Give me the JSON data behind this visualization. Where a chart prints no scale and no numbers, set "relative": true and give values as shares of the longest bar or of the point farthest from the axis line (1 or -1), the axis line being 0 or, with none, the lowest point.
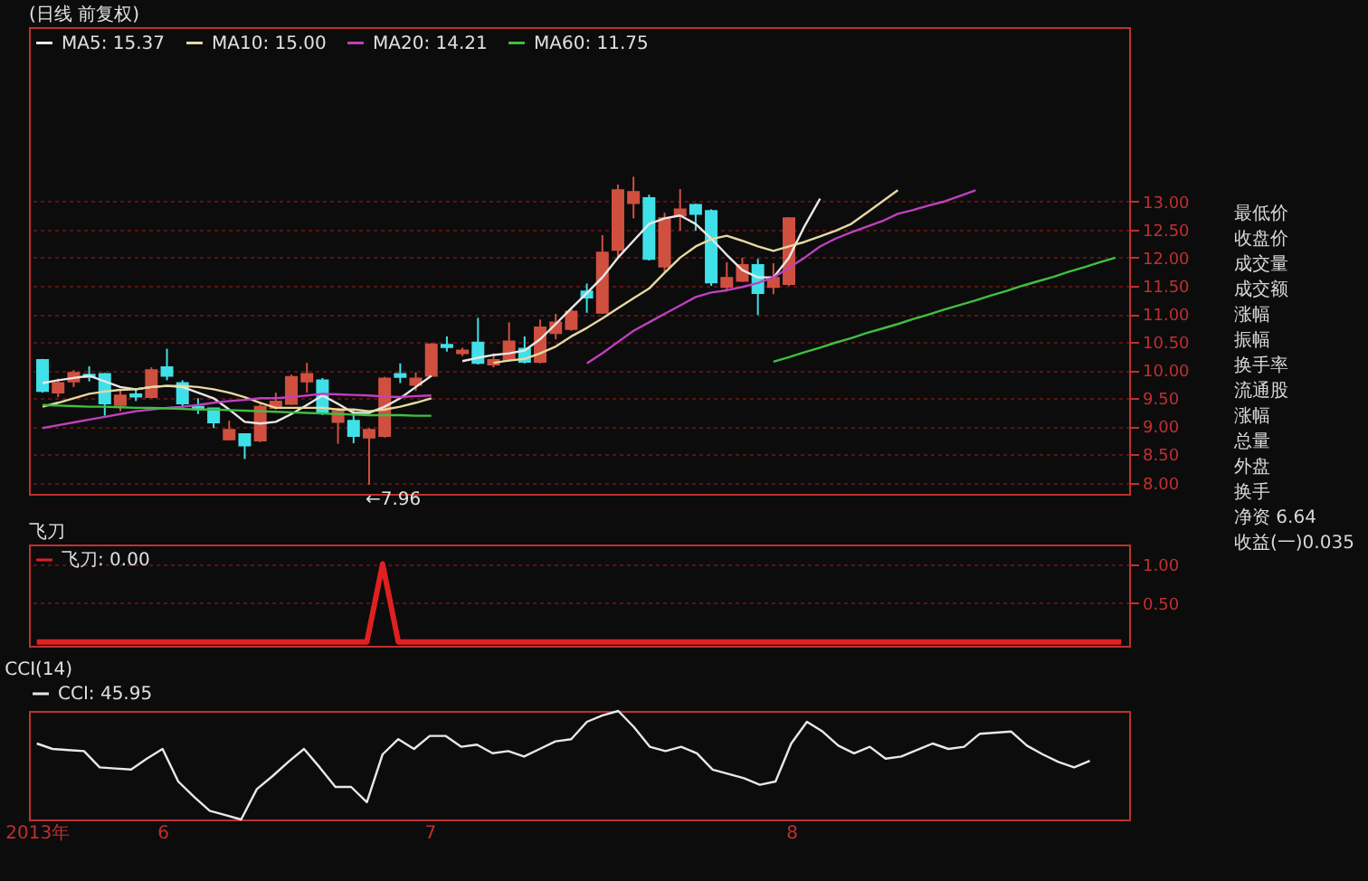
{
  "chart_data": [
    {
      "type": "candlestick",
      "title": "(日线 前复权)",
      "categories": [
        null,
        null,
        null,
        null,
        null,
        null,
        null,
        null,
        null,
        null,
        null,
        null,
        null,
        null,
        null,
        null,
        null,
        null,
        null,
        null,
        null,
        null,
        null,
        null,
        null,
        null,
        null,
        null,
        null,
        null,
        null,
        null,
        null,
        null,
        null,
        null,
        null,
        null,
        null,
        null,
        null,
        null,
        null,
        null,
        null,
        null,
        null,
        null,
        null,
        null,
        null,
        null,
        null,
        null,
        null,
        null,
        null,
        null,
        null,
        null,
        null,
        null,
        null,
        null,
        null,
        null,
        null,
        null,
        null,
        null
      ],
      "ohlc": [
        [
          10.18,
          10.2,
          9.6,
          9.63
        ],
        [
          9.6,
          9.85,
          9.52,
          9.77
        ],
        [
          9.8,
          10.0,
          9.7,
          9.95
        ],
        [
          9.92,
          10.07,
          9.8,
          9.88
        ],
        [
          9.93,
          9.95,
          9.19,
          9.41
        ],
        [
          9.38,
          9.66,
          9.27,
          9.55
        ],
        [
          9.57,
          9.66,
          9.45,
          9.53
        ],
        [
          9.52,
          10.05,
          9.5,
          10.0
        ],
        [
          10.05,
          10.38,
          9.82,
          9.9
        ],
        [
          9.77,
          9.82,
          9.33,
          9.41
        ],
        [
          9.35,
          9.5,
          9.22,
          9.31
        ],
        [
          9.32,
          9.33,
          8.97,
          9.07
        ],
        [
          8.77,
          9.1,
          8.75,
          8.94
        ],
        [
          8.86,
          8.87,
          8.42,
          8.66
        ],
        [
          8.75,
          9.4,
          8.72,
          9.35
        ],
        [
          9.33,
          9.6,
          9.3,
          9.44
        ],
        [
          9.4,
          9.92,
          9.38,
          9.88
        ],
        [
          9.8,
          10.13,
          9.6,
          9.93
        ],
        [
          9.82,
          9.86,
          9.2,
          9.24
        ],
        [
          9.08,
          9.33,
          8.69,
          9.27
        ],
        [
          9.1,
          9.3,
          8.7,
          8.83
        ],
        [
          8.8,
          8.97,
          7.96,
          8.94
        ],
        [
          8.83,
          9.88,
          8.8,
          9.85
        ],
        [
          9.93,
          10.12,
          9.77,
          9.88
        ],
        [
          9.74,
          9.96,
          9.63,
          9.85
        ],
        [
          9.9,
          10.48,
          9.88,
          10.46
        ],
        [
          10.45,
          10.6,
          10.33,
          10.41
        ],
        [
          10.3,
          10.4,
          10.25,
          10.35
        ],
        [
          10.49,
          10.93,
          10.1,
          10.13
        ],
        [
          10.1,
          10.3,
          10.05,
          10.18
        ],
        [
          10.18,
          10.85,
          10.15,
          10.51
        ],
        [
          10.38,
          10.6,
          10.12,
          10.15
        ],
        [
          10.15,
          10.9,
          10.12,
          10.76
        ],
        [
          10.66,
          11.0,
          10.55,
          10.85
        ],
        [
          10.73,
          11.1,
          10.7,
          11.04
        ],
        [
          11.4,
          11.54,
          11.02,
          11.29
        ],
        [
          11.02,
          12.4,
          11.0,
          12.09
        ],
        [
          12.14,
          13.3,
          12.0,
          13.2
        ],
        [
          12.97,
          13.44,
          12.7,
          13.17
        ],
        [
          13.06,
          13.12,
          11.95,
          11.98
        ],
        [
          11.84,
          12.8,
          11.73,
          12.7
        ],
        [
          12.75,
          13.22,
          12.48,
          12.86
        ],
        [
          12.94,
          12.96,
          12.48,
          12.78
        ],
        [
          12.83,
          12.86,
          11.5,
          11.56
        ],
        [
          11.48,
          11.92,
          11.4,
          11.64
        ],
        [
          11.59,
          12.0,
          11.57,
          11.87
        ],
        [
          11.87,
          11.98,
          10.98,
          11.37
        ],
        [
          11.48,
          11.9,
          11.35,
          11.64
        ],
        [
          11.53,
          12.72,
          11.5,
          12.7
        ],
        null,
        null,
        null,
        null,
        null,
        null,
        null,
        null,
        null,
        null,
        null,
        null,
        null,
        null,
        null,
        null,
        null,
        null,
        null,
        null,
        null
      ],
      "series": [
        {
          "name": "MA5: 15.37",
          "type": "line",
          "color": "#e8e8e8",
          "values": [
            9.77,
            9.82,
            9.86,
            9.9,
            9.8,
            9.7,
            9.66,
            9.7,
            9.72,
            9.7,
            9.6,
            9.5,
            9.3,
            9.08,
            9.05,
            9.08,
            9.22,
            9.38,
            9.55,
            9.4,
            9.24,
            9.24,
            9.35,
            9.5,
            9.7,
            9.9,
            null,
            10.16,
            10.22,
            10.27,
            10.3,
            10.35,
            10.55,
            10.82,
            11.1,
            11.37,
            11.65,
            12.0,
            12.3,
            12.6,
            12.7,
            12.75,
            12.6,
            12.34,
            12.05,
            11.78,
            11.65,
            11.65,
            12.0,
            12.56,
            13.05,
            null,
            null,
            null,
            null,
            null,
            null,
            null,
            null,
            null,
            null,
            null,
            null,
            null,
            null,
            null,
            null,
            null,
            null,
            null
          ]
        },
        {
          "name": "MA10: 15.00",
          "type": "line",
          "color": "#e6d9a0",
          "values": [
            9.35,
            9.42,
            9.5,
            9.58,
            9.62,
            9.65,
            9.66,
            9.7,
            9.72,
            9.72,
            9.7,
            9.66,
            9.6,
            9.52,
            9.42,
            9.33,
            9.33,
            9.33,
            9.33,
            9.3,
            9.3,
            9.27,
            9.3,
            9.35,
            9.42,
            9.5,
            null,
            null,
            null,
            10.13,
            10.17,
            10.2,
            10.3,
            10.42,
            10.6,
            10.75,
            10.92,
            11.1,
            11.28,
            11.45,
            11.73,
            12.0,
            12.2,
            12.33,
            12.39,
            12.3,
            12.2,
            12.12,
            12.2,
            12.28,
            12.38,
            12.48,
            12.6,
            12.8,
            13.0,
            13.2,
            null,
            null,
            null,
            null,
            null,
            null,
            null,
            null,
            null,
            null,
            null,
            null,
            null,
            null
          ]
        },
        {
          "name": "MA20: 14.21",
          "type": "line",
          "color": "#c040c0",
          "values": [
            8.97,
            9.02,
            9.07,
            9.12,
            9.17,
            9.22,
            9.27,
            9.3,
            9.33,
            9.35,
            9.38,
            9.42,
            9.45,
            9.47,
            9.5,
            9.5,
            9.52,
            9.55,
            9.58,
            9.57,
            9.56,
            9.55,
            9.53,
            9.52,
            9.54,
            9.55,
            null,
            null,
            null,
            null,
            null,
            null,
            null,
            null,
            null,
            10.12,
            10.3,
            10.5,
            10.7,
            10.85,
            11.0,
            11.15,
            11.3,
            11.38,
            11.42,
            11.48,
            11.55,
            11.65,
            11.82,
            12.0,
            12.2,
            12.34,
            12.45,
            12.55,
            12.65,
            12.78,
            12.85,
            12.93,
            13.0,
            13.1,
            13.2,
            null,
            null,
            null,
            null,
            null,
            null,
            null,
            null,
            null
          ]
        },
        {
          "name": "MA60: 11.75",
          "type": "line",
          "color": "#40c040",
          "values": [
            9.38,
            9.37,
            9.36,
            9.35,
            9.35,
            9.34,
            9.33,
            9.33,
            9.32,
            9.31,
            9.3,
            9.3,
            9.29,
            9.28,
            9.27,
            9.26,
            9.25,
            9.24,
            9.23,
            9.22,
            9.21,
            9.2,
            9.2,
            9.2,
            9.19,
            9.19,
            null,
            null,
            null,
            null,
            null,
            null,
            null,
            null,
            null,
            null,
            null,
            null,
            null,
            null,
            null,
            null,
            null,
            null,
            null,
            null,
            null,
            10.15,
            10.23,
            10.32,
            10.4,
            10.49,
            10.57,
            10.66,
            10.74,
            10.82,
            10.91,
            10.99,
            11.08,
            11.16,
            11.24,
            11.33,
            11.41,
            11.5,
            11.58,
            11.66,
            11.75,
            11.83,
            11.92,
            12.0
          ]
        }
      ],
      "ylim": [
        7.8,
        16.1
      ],
      "yticks": [
        {
          "value": 8,
          "label": "8.00"
        },
        {
          "value": 8.5,
          "label": "8.50"
        },
        {
          "value": 9,
          "label": "9.00"
        },
        {
          "value": 9.5,
          "label": "9.50"
        },
        {
          "value": 10,
          "label": "10.00"
        },
        {
          "value": 10.5,
          "label": "10.50"
        },
        {
          "value": 11,
          "label": "11.00"
        },
        {
          "value": 11.5,
          "label": "11.50"
        },
        {
          "value": 12,
          "label": "12.00"
        },
        {
          "value": 12.5,
          "label": "12.50"
        },
        {
          "value": 13,
          "label": "13.00"
        }
      ],
      "grid": "y",
      "tick_labels": "y",
      "legend": "top left",
      "annotations": [
        "←7.96",
        "最低价",
        "收盘价",
        "成交量",
        "成交额",
        "涨幅",
        "振幅",
        "换手率",
        "流通股",
        "涨幅",
        "总量",
        "外盘",
        "换手",
        "净资 6.64",
        "收益(一)0.035"
      ]
    },
    {
      "type": "line",
      "title": "飞刀",
      "categories": [
        null,
        null,
        null,
        null,
        null,
        null,
        null,
        null,
        null,
        null,
        null,
        null,
        null,
        null,
        null,
        null,
        null,
        null,
        null,
        null,
        null,
        null,
        null,
        null,
        null,
        null,
        null,
        null,
        null,
        null,
        null,
        null,
        null,
        null,
        null,
        null,
        null,
        null,
        null,
        null,
        null,
        null,
        null,
        null,
        null,
        null,
        null,
        null,
        null,
        null,
        null,
        null,
        null,
        null,
        null,
        null,
        null,
        null,
        null,
        null,
        null,
        null,
        null,
        null,
        null,
        null,
        null,
        null,
        null,
        null
      ],
      "series": [
        {
          "name": "飞刀: 0.00",
          "color": "#e02020",
          "values": [
            0,
            0,
            0,
            0,
            0,
            0,
            0,
            0,
            0,
            0,
            0,
            0,
            0,
            0,
            0,
            0,
            0,
            0,
            0,
            0,
            0,
            0,
            1,
            0,
            0,
            0,
            0,
            0,
            0,
            0,
            0,
            0,
            0,
            0,
            0,
            0,
            0,
            0,
            0,
            0,
            0,
            0,
            0,
            0,
            0,
            0,
            0,
            0,
            0,
            0,
            0,
            0,
            0,
            0,
            0,
            0,
            0,
            0,
            0,
            0,
            0,
            0,
            0,
            0,
            0,
            0,
            0,
            0,
            0,
            0
          ]
        }
      ],
      "ylim": [
        -0.05,
        1.25
      ],
      "yticks": [
        {
          "value": 0.5,
          "label": "0.50"
        },
        {
          "value": 1,
          "label": "1.00"
        }
      ],
      "grid": "y",
      "tick_labels": "y",
      "legend": "top left"
    },
    {
      "type": "line",
      "title": "CCI(14)",
      "relative": true,
      "categories": [
        "2013年",
        null,
        null,
        null,
        null,
        null,
        null,
        null,
        "6",
        null,
        null,
        null,
        null,
        null,
        null,
        null,
        null,
        null,
        null,
        null,
        null,
        null,
        null,
        null,
        null,
        "7",
        null,
        null,
        null,
        null,
        null,
        null,
        null,
        null,
        null,
        null,
        null,
        null,
        null,
        null,
        null,
        null,
        null,
        null,
        null,
        null,
        null,
        null,
        "8",
        null,
        null,
        null,
        null,
        null,
        null,
        null,
        null,
        null,
        null,
        null,
        null,
        null,
        null,
        null,
        null,
        null,
        null,
        null,
        null,
        null
      ],
      "series": [
        {
          "name": "CCI: 45.95",
          "color": "#e8e8e8",
          "values": [
            0.7,
            0.65,
            0.64,
            0.63,
            0.48,
            0.47,
            0.46,
            0.56,
            0.65,
            0.35,
            0.21,
            0.08,
            0.04,
            0,
            0.28,
            0.4,
            0.53,
            0.65,
            0.48,
            0.3,
            0.3,
            0.16,
            0.6,
            0.74,
            0.65,
            0.77,
            0.77,
            0.67,
            0.69,
            0.61,
            0.63,
            0.58,
            0.65,
            0.72,
            0.74,
            0.9,
            0.96,
            1,
            0.85,
            0.67,
            0.63,
            0.67,
            0.61,
            0.46,
            0.42,
            0.38,
            0.32,
            0.35,
            0.7,
            0.9,
            0.81,
            0.68,
            0.61,
            0.67,
            0.56,
            0.58,
            0.64,
            0.7,
            0.65,
            0.67,
            0.79,
            0.8,
            0.81,
            0.68,
            0.6,
            0.53,
            0.48,
            0.54,
            null,
            null
          ]
        }
      ],
      "tick_labels": "x",
      "legend": "top"
    }
  ]
}
